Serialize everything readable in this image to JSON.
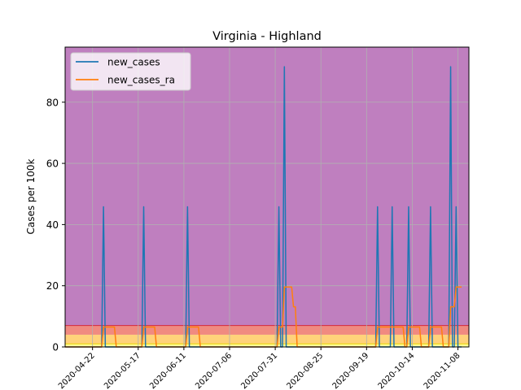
{
  "chart_data": {
    "type": "line",
    "title": "Virginia - Highland",
    "xlabel": "",
    "ylabel": "Cases per 100k",
    "x_range": [
      "2020-04-07",
      "2020-11-14"
    ],
    "ylim": [
      0,
      98
    ],
    "grid": true,
    "legend_position": "top-left",
    "x_ticks": [
      "2020-04-22",
      "2020-05-17",
      "2020-06-11",
      "2020-07-06",
      "2020-07-31",
      "2020-08-25",
      "2020-09-19",
      "2020-10-14",
      "2020-11-08"
    ],
    "y_ticks": [
      0,
      20,
      40,
      60,
      80
    ],
    "background_bands": [
      {
        "from": 0,
        "to": 1,
        "color": "#ffff99"
      },
      {
        "from": 1,
        "to": 4,
        "color": "#ffd27a"
      },
      {
        "from": 4,
        "to": 7,
        "color": "#f08a80"
      },
      {
        "from": 7,
        "to": 98,
        "color": "#bf7fbf"
      }
    ],
    "band_lines": [
      {
        "y": 1,
        "color": "#e8d000"
      },
      {
        "y": 7,
        "color": "#d42a3a"
      }
    ],
    "series": [
      {
        "name": "new_cases",
        "color": "#1f77b4",
        "points": [
          [
            "2020-04-07",
            0
          ],
          [
            "2020-04-27",
            0
          ],
          [
            "2020-04-28",
            45.8
          ],
          [
            "2020-04-29",
            0
          ],
          [
            "2020-05-19",
            0
          ],
          [
            "2020-05-20",
            45.8
          ],
          [
            "2020-05-21",
            0
          ],
          [
            "2020-06-12",
            0
          ],
          [
            "2020-06-13",
            45.8
          ],
          [
            "2020-06-14",
            0
          ],
          [
            "2020-08-01",
            0
          ],
          [
            "2020-08-02",
            45.8
          ],
          [
            "2020-08-03",
            0
          ],
          [
            "2020-08-04",
            0
          ],
          [
            "2020-08-05",
            91.6
          ],
          [
            "2020-08-06",
            0
          ],
          [
            "2020-09-24",
            0
          ],
          [
            "2020-09-25",
            45.8
          ],
          [
            "2020-09-26",
            0
          ],
          [
            "2020-10-02",
            0
          ],
          [
            "2020-10-03",
            45.8
          ],
          [
            "2020-10-04",
            0
          ],
          [
            "2020-10-11",
            0
          ],
          [
            "2020-10-12",
            45.8
          ],
          [
            "2020-10-13",
            0
          ],
          [
            "2020-10-23",
            0
          ],
          [
            "2020-10-24",
            45.8
          ],
          [
            "2020-10-25",
            0
          ],
          [
            "2020-11-03",
            0
          ],
          [
            "2020-11-04",
            91.6
          ],
          [
            "2020-11-05",
            0
          ],
          [
            "2020-11-06",
            0
          ],
          [
            "2020-11-07",
            45.8
          ],
          [
            "2020-11-08",
            0
          ],
          [
            "2020-11-10",
            0
          ]
        ]
      },
      {
        "name": "new_cases_ra",
        "color": "#ff7f0e",
        "points": [
          [
            "2020-04-07",
            0
          ],
          [
            "2020-04-27",
            0
          ],
          [
            "2020-04-28",
            6.5
          ],
          [
            "2020-05-04",
            6.5
          ],
          [
            "2020-05-05",
            0
          ],
          [
            "2020-05-19",
            0
          ],
          [
            "2020-05-20",
            6.5
          ],
          [
            "2020-05-26",
            6.5
          ],
          [
            "2020-05-27",
            0
          ],
          [
            "2020-06-12",
            0
          ],
          [
            "2020-06-13",
            6.5
          ],
          [
            "2020-06-19",
            6.5
          ],
          [
            "2020-06-20",
            0
          ],
          [
            "2020-08-01",
            0
          ],
          [
            "2020-08-02",
            6.5
          ],
          [
            "2020-08-04",
            6.5
          ],
          [
            "2020-08-05",
            19.6
          ],
          [
            "2020-08-09",
            19.6
          ],
          [
            "2020-08-10",
            13.1
          ],
          [
            "2020-08-11",
            13.1
          ],
          [
            "2020-08-12",
            0
          ],
          [
            "2020-09-24",
            0
          ],
          [
            "2020-09-25",
            6.5
          ],
          [
            "2020-10-01",
            6.5
          ],
          [
            "2020-10-02",
            6.5
          ],
          [
            "2020-10-03",
            6.5
          ],
          [
            "2020-10-09",
            6.5
          ],
          [
            "2020-10-10",
            0
          ],
          [
            "2020-10-11",
            0
          ],
          [
            "2020-10-12",
            6.5
          ],
          [
            "2020-10-18",
            6.5
          ],
          [
            "2020-10-19",
            0
          ],
          [
            "2020-10-23",
            0
          ],
          [
            "2020-10-24",
            6.5
          ],
          [
            "2020-10-30",
            6.5
          ],
          [
            "2020-10-31",
            0
          ],
          [
            "2020-11-03",
            0
          ],
          [
            "2020-11-04",
            13.1
          ],
          [
            "2020-11-06",
            13.1
          ],
          [
            "2020-11-07",
            19.6
          ],
          [
            "2020-11-10",
            19.6
          ]
        ]
      }
    ]
  }
}
